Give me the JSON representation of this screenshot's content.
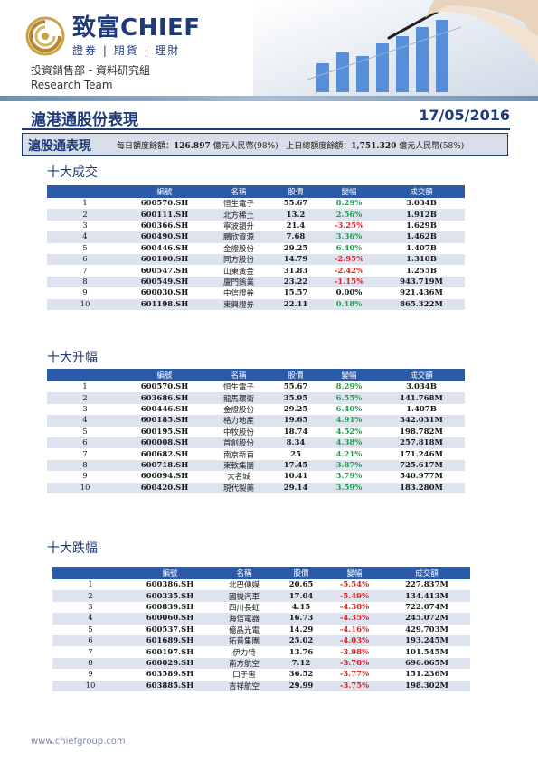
{
  "header": {
    "brand_name": "致富CHIEF",
    "brand_tagline": "證券 | 期貨 | 理財",
    "dept_cn": "投資銷售部 - 資料研究組",
    "dept_en": "Research Team",
    "logo_icon": "chief-logo-icon",
    "hero_icon": "hand-pen-bar-chart-icon"
  },
  "title": "滬港通股份表現",
  "date": "17/05/2016",
  "quota": {
    "label": "滬股通表現",
    "daily_prefix": "每日額度餘額：",
    "daily_value": "126.897",
    "daily_suffix": "億元人民幣(98%)",
    "prev_prefix": "上日總額度餘額：",
    "prev_value": "1,751.320",
    "prev_suffix": "億元人民幣(58%)"
  },
  "columns": [
    "編號",
    "名稱",
    "股價",
    "變幅",
    "成交額"
  ],
  "sections": [
    {
      "title": "十大成交",
      "rows": [
        {
          "rank": "1",
          "code": "600570.SH",
          "name": "恒生電子",
          "price": "55.67",
          "change": "8.29%",
          "dir": "up",
          "turnover": "3.034B"
        },
        {
          "rank": "2",
          "code": "600111.SH",
          "name": "北方稀土",
          "price": "13.2",
          "change": "2.56%",
          "dir": "up",
          "turnover": "1.912B"
        },
        {
          "rank": "3",
          "code": "600366.SH",
          "name": "寧波韻升",
          "price": "21.4",
          "change": "-3.25%",
          "dir": "down",
          "turnover": "1.629B"
        },
        {
          "rank": "4",
          "code": "600490.SH",
          "name": "鵬欣資源",
          "price": "7.68",
          "change": "3.36%",
          "dir": "up",
          "turnover": "1.462B"
        },
        {
          "rank": "5",
          "code": "600446.SH",
          "name": "金證股份",
          "price": "29.25",
          "change": "6.40%",
          "dir": "up",
          "turnover": "1.407B"
        },
        {
          "rank": "6",
          "code": "600100.SH",
          "name": "同方股份",
          "price": "14.79",
          "change": "-2.95%",
          "dir": "down",
          "turnover": "1.310B"
        },
        {
          "rank": "7",
          "code": "600547.SH",
          "name": "山東黃金",
          "price": "31.83",
          "change": "-2.42%",
          "dir": "down",
          "turnover": "1.255B"
        },
        {
          "rank": "8",
          "code": "600549.SH",
          "name": "廈門鎢業",
          "price": "23.22",
          "change": "-1.15%",
          "dir": "down",
          "turnover": "943.719M"
        },
        {
          "rank": "9",
          "code": "600030.SH",
          "name": "中信證券",
          "price": "15.57",
          "change": "0.00%",
          "dir": "flat",
          "turnover": "921.436M"
        },
        {
          "rank": "10",
          "code": "601198.SH",
          "name": "東興證券",
          "price": "22.11",
          "change": "0.18%",
          "dir": "up",
          "turnover": "865.322M"
        }
      ]
    },
    {
      "title": "十大升幅",
      "rows": [
        {
          "rank": "1",
          "code": "600570.SH",
          "name": "恒生電子",
          "price": "55.67",
          "change": "8.29%",
          "dir": "up",
          "turnover": "3.034B"
        },
        {
          "rank": "2",
          "code": "603686.SH",
          "name": "龍馬環衛",
          "price": "35.95",
          "change": "6.55%",
          "dir": "up",
          "turnover": "141.768M"
        },
        {
          "rank": "3",
          "code": "600446.SH",
          "name": "金證股份",
          "price": "29.25",
          "change": "6.40%",
          "dir": "up",
          "turnover": "1.407B"
        },
        {
          "rank": "4",
          "code": "600185.SH",
          "name": "格力地產",
          "price": "19.65",
          "change": "4.91%",
          "dir": "up",
          "turnover": "342.031M"
        },
        {
          "rank": "5",
          "code": "600195.SH",
          "name": "中牧股份",
          "price": "18.74",
          "change": "4.52%",
          "dir": "up",
          "turnover": "198.782M"
        },
        {
          "rank": "6",
          "code": "600008.SH",
          "name": "首創股份",
          "price": "8.34",
          "change": "4.38%",
          "dir": "up",
          "turnover": "257.818M"
        },
        {
          "rank": "7",
          "code": "600682.SH",
          "name": "南京新百",
          "price": "25",
          "change": "4.21%",
          "dir": "up",
          "turnover": "171.246M"
        },
        {
          "rank": "8",
          "code": "600718.SH",
          "name": "東軟集團",
          "price": "17.45",
          "change": "3.87%",
          "dir": "up",
          "turnover": "725.617M"
        },
        {
          "rank": "9",
          "code": "600094.SH",
          "name": "大名城",
          "price": "10.41",
          "change": "3.79%",
          "dir": "up",
          "turnover": "540.977M"
        },
        {
          "rank": "10",
          "code": "600420.SH",
          "name": "現代製藥",
          "price": "29.14",
          "change": "3.59%",
          "dir": "up",
          "turnover": "183.280M"
        }
      ]
    },
    {
      "title": "十大跌幅",
      "rows": [
        {
          "rank": "1",
          "code": "600386.SH",
          "name": "北巴傳媒",
          "price": "20.65",
          "change": "-5.54%",
          "dir": "down",
          "turnover": "227.837M"
        },
        {
          "rank": "2",
          "code": "600335.SH",
          "name": "國機汽車",
          "price": "17.04",
          "change": "-5.49%",
          "dir": "down",
          "turnover": "134.413M"
        },
        {
          "rank": "3",
          "code": "600839.SH",
          "name": "四川長虹",
          "price": "4.15",
          "change": "-4.38%",
          "dir": "down",
          "turnover": "722.074M"
        },
        {
          "rank": "4",
          "code": "600060.SH",
          "name": "海信電器",
          "price": "16.73",
          "change": "-4.35%",
          "dir": "down",
          "turnover": "245.072M"
        },
        {
          "rank": "5",
          "code": "600537.SH",
          "name": "億晶光電",
          "price": "14.29",
          "change": "-4.16%",
          "dir": "down",
          "turnover": "429.703M"
        },
        {
          "rank": "6",
          "code": "601689.SH",
          "name": "拓普集團",
          "price": "25.02",
          "change": "-4.03%",
          "dir": "down",
          "turnover": "193.245M"
        },
        {
          "rank": "7",
          "code": "600197.SH",
          "name": "伊力特",
          "price": "13.76",
          "change": "-3.98%",
          "dir": "down",
          "turnover": "101.545M"
        },
        {
          "rank": "8",
          "code": "600029.SH",
          "name": "南方航空",
          "price": "7.12",
          "change": "-3.78%",
          "dir": "down",
          "turnover": "696.065M"
        },
        {
          "rank": "9",
          "code": "603589.SH",
          "name": "口子窖",
          "price": "36.52",
          "change": "-3.77%",
          "dir": "down",
          "turnover": "151.236M"
        },
        {
          "rank": "10",
          "code": "603885.SH",
          "name": "吉祥航空",
          "price": "29.99",
          "change": "-3.75%",
          "dir": "down",
          "turnover": "198.302M"
        }
      ]
    }
  ],
  "colors": {
    "brand_blue": "#1f3a78",
    "header_blue": "#2a5aa8",
    "stripe": "#dde4ef",
    "up_green": "#1aa34a",
    "down_red": "#e02020"
  },
  "footer": "www.chiefgroup.com"
}
